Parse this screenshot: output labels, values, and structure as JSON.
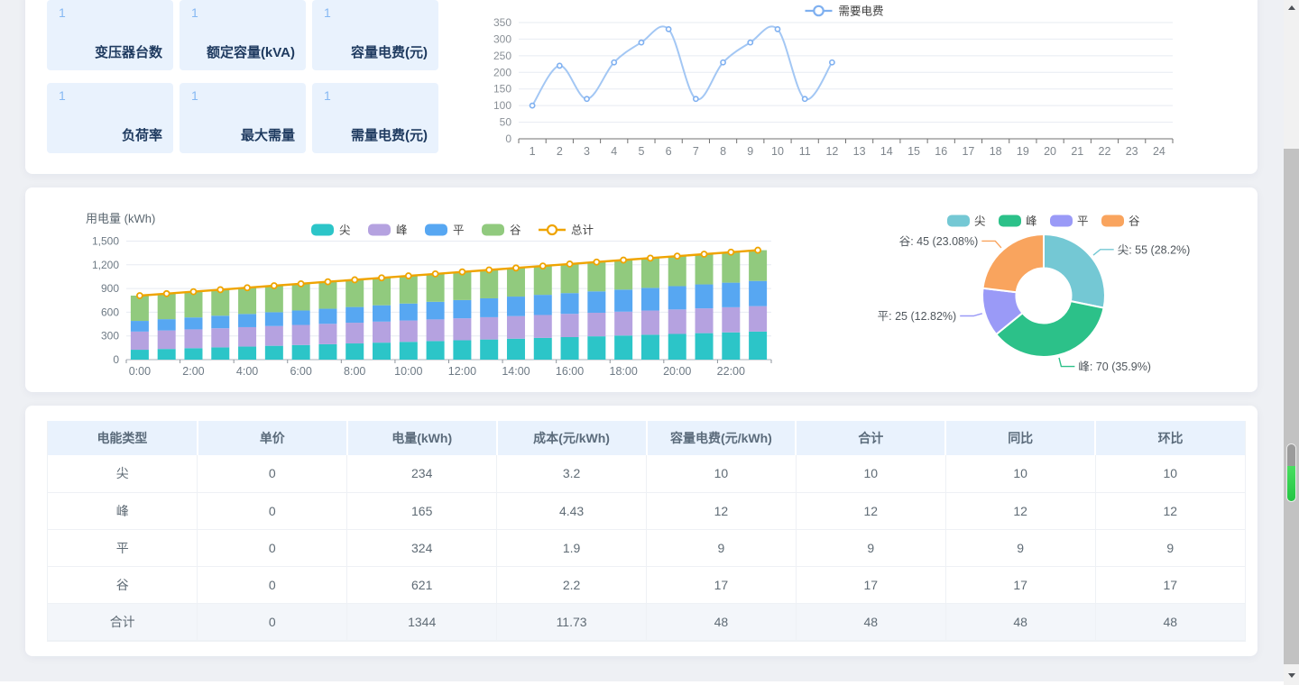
{
  "page": {
    "background": "#eef0f4",
    "panel_background": "#ffffff"
  },
  "stat_cards": [
    {
      "value": "1",
      "label": "变压器台数"
    },
    {
      "value": "1",
      "label": "额定容量(kVA)"
    },
    {
      "value": "1",
      "label": "容量电费(元)"
    },
    {
      "value": "1",
      "label": "负荷率"
    },
    {
      "value": "1",
      "label": "最大需量"
    },
    {
      "value": "1",
      "label": "需量电费(元)"
    }
  ],
  "chart_data": [
    {
      "id": "demand_line",
      "type": "line",
      "title": "",
      "legend": [
        "需要电费"
      ],
      "legend_position": "top-center",
      "x": [
        "1",
        "2",
        "3",
        "4",
        "5",
        "6",
        "7",
        "8",
        "9",
        "10",
        "11",
        "12",
        "13",
        "14",
        "15",
        "16",
        "17",
        "18",
        "19",
        "20",
        "21",
        "22",
        "23",
        "24"
      ],
      "series": [
        {
          "name": "需要电费",
          "color": "#a3c7f4",
          "marker_color": "#7fb0f0",
          "values": [
            100,
            220,
            120,
            230,
            290,
            330,
            120,
            230,
            290,
            330,
            120,
            230
          ]
        }
      ],
      "smooth": true,
      "grid": true,
      "ylim": [
        0,
        350
      ],
      "ytick_labels": [
        "0",
        "50",
        "100",
        "150",
        "200",
        "250",
        "300",
        "350"
      ]
    },
    {
      "id": "usage_bar",
      "type": "bar",
      "stacked": true,
      "title": "用电量 (kWh)",
      "categories": [
        "0:00",
        "1:00",
        "2:00",
        "3:00",
        "4:00",
        "5:00",
        "6:00",
        "7:00",
        "8:00",
        "9:00",
        "10:00",
        "11:00",
        "12:00",
        "13:00",
        "14:00",
        "15:00",
        "16:00",
        "17:00",
        "18:00",
        "19:00",
        "20:00",
        "21:00",
        "22:00",
        "23:00"
      ],
      "x_label_every": 2,
      "series": [
        {
          "name": "尖",
          "color": "#2cc5c8",
          "values": [
            125,
            135,
            145,
            155,
            165,
            175,
            185,
            195,
            205,
            215,
            225,
            235,
            245,
            255,
            265,
            275,
            285,
            295,
            305,
            315,
            325,
            335,
            345,
            355
          ]
        },
        {
          "name": "峰",
          "color": "#b5a2e0",
          "values": [
            230,
            234,
            238,
            242,
            246,
            250,
            254,
            258,
            262,
            266,
            270,
            274,
            278,
            282,
            286,
            290,
            294,
            298,
            302,
            306,
            310,
            314,
            318,
            322
          ]
        },
        {
          "name": "平",
          "color": "#57a7f2",
          "values": [
            135,
            143,
            151,
            159,
            167,
            175,
            183,
            191,
            199,
            207,
            215,
            223,
            231,
            239,
            247,
            255,
            263,
            271,
            279,
            287,
            295,
            303,
            311,
            319
          ]
        },
        {
          "name": "谷",
          "color": "#91ca7e",
          "values": [
            320,
            323,
            326,
            329,
            332,
            335,
            338,
            341,
            344,
            347,
            350,
            353,
            356,
            359,
            362,
            365,
            368,
            371,
            374,
            377,
            380,
            383,
            386,
            389
          ]
        }
      ],
      "line": {
        "name": "总计",
        "color": "#efa400",
        "values": [
          810,
          835,
          860,
          885,
          910,
          935,
          960,
          985,
          1010,
          1035,
          1060,
          1085,
          1110,
          1135,
          1160,
          1185,
          1210,
          1235,
          1260,
          1285,
          1310,
          1335,
          1360,
          1385
        ]
      },
      "grid": true,
      "ylim": [
        0,
        1500
      ],
      "ytick_labels": [
        "0",
        "300",
        "600",
        "900",
        "1,200",
        "1,500"
      ]
    },
    {
      "id": "usage_pie",
      "type": "pie",
      "legend": [
        "尖",
        "峰",
        "平",
        "谷"
      ],
      "legend_position": "top-center",
      "slices": [
        {
          "name": "尖",
          "value": 55,
          "pct": "28.2%",
          "label": "尖: 55 (28.2%)",
          "color": "#74c8d4"
        },
        {
          "name": "峰",
          "value": 70,
          "pct": "35.9%",
          "label": "峰: 70 (35.9%)",
          "color": "#2cc189"
        },
        {
          "name": "平",
          "value": 25,
          "pct": "12.82%",
          "label": "平: 25 (12.82%)",
          "color": "#9a9af7"
        },
        {
          "name": "谷",
          "value": 45,
          "pct": "23.08%",
          "label": "谷: 45 (23.08%)",
          "color": "#f9a45e"
        }
      ]
    }
  ],
  "table": {
    "headers": [
      "电能类型",
      "单价",
      "电量(kWh)",
      "成本(元/kWh)",
      "容量电费(元/kWh)",
      "合计",
      "同比",
      "环比"
    ],
    "rows": [
      [
        "尖",
        "0",
        "234",
        "3.2",
        "10",
        "10",
        "10",
        "10"
      ],
      [
        "峰",
        "0",
        "165",
        "4.43",
        "12",
        "12",
        "12",
        "12"
      ],
      [
        "平",
        "0",
        "324",
        "1.9",
        "9",
        "9",
        "9",
        "9"
      ],
      [
        "谷",
        "0",
        "621",
        "2.2",
        "17",
        "17",
        "17",
        "17"
      ],
      [
        "合计",
        "0",
        "1344",
        "11.73",
        "48",
        "48",
        "48",
        "48"
      ]
    ],
    "total_row_index": 4
  },
  "colors": {
    "card_bg": "#e9f2fd",
    "card_value": "#85b8f3",
    "card_label": "#1e3a5f",
    "grid_line": "#e7ebf2",
    "axis_line": "#707070",
    "axis_label": "#808890",
    "legend_text": "#454545",
    "table_header_bg": "#e9f2fd"
  }
}
